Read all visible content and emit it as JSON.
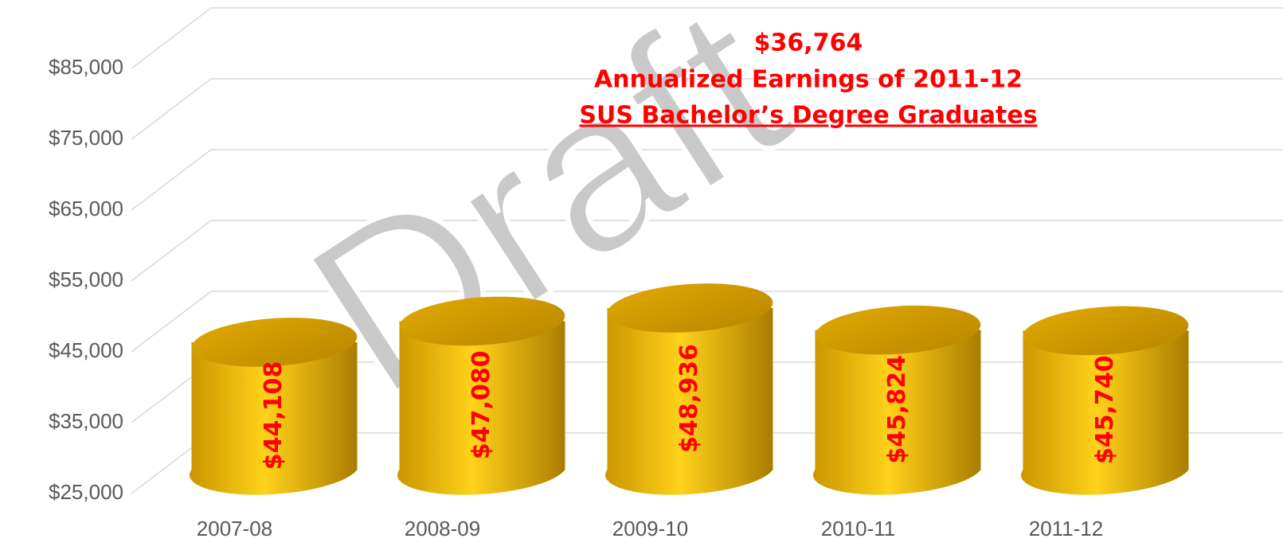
{
  "chart_data": {
    "type": "bar",
    "title": "$36,764",
    "subtitle": "Annualized Earnings of 2011-12",
    "subtitle2": "SUS Bachelor’s Degree Graduates",
    "watermark": "Draft",
    "categories": [
      "2007-08",
      "2008-09",
      "2009-10",
      "2010-11",
      "2011-12"
    ],
    "values": [
      44108,
      47080,
      48936,
      45824,
      45740
    ],
    "value_labels": [
      "$44,108",
      "$47,080",
      "$48,936",
      "$45,824",
      "$45,740"
    ],
    "color": "#f5bd00",
    "ylim": [
      25000,
      85000
    ],
    "yticks": [
      {
        "value": 25000,
        "label": "$25,000"
      },
      {
        "value": 35000,
        "label": "$35,000"
      },
      {
        "value": 45000,
        "label": "$45,000"
      },
      {
        "value": 55000,
        "label": "$55,000"
      },
      {
        "value": 65000,
        "label": "$65,000"
      },
      {
        "value": 75000,
        "label": "$75,000"
      },
      {
        "value": 85000,
        "label": "$85,000"
      }
    ],
    "grid": true
  }
}
